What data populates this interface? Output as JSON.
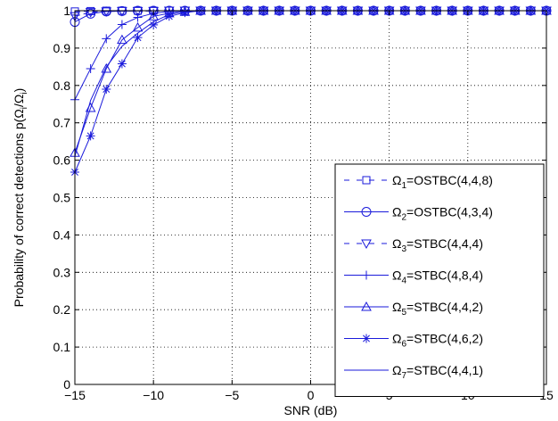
{
  "chart_data": {
    "type": "line",
    "title": "",
    "xlabel": "SNR (dB)",
    "ylabel": "Probability of correct detections p(Ωᵢ/Ωᵢ)",
    "ylabel_main": "Probability of correct detections p(Ω",
    "ylabel_sub": "i",
    "ylabel_mid": "/Ω",
    "ylabel_end": ")",
    "xlim": [
      -15,
      15
    ],
    "ylim": [
      0,
      1
    ],
    "xticks": [
      -15,
      -10,
      -5,
      0,
      5,
      10,
      15
    ],
    "yticks": [
      0,
      0.1,
      0.2,
      0.3,
      0.4,
      0.5,
      0.6,
      0.7,
      0.8,
      0.9,
      1
    ],
    "xtick_labels": [
      "−15",
      "−10",
      "−5",
      "0",
      "5",
      "10",
      "15"
    ],
    "ytick_labels": [
      "0",
      "0.1",
      "0.2",
      "0.3",
      "0.4",
      "0.5",
      "0.6",
      "0.7",
      "0.8",
      "0.9",
      "1"
    ],
    "grid": true,
    "legend_position": "bottom-right",
    "x": [
      -15,
      -14,
      -13,
      -12,
      -11,
      -10,
      -9,
      -8,
      -7,
      -6,
      -5,
      -4,
      -3,
      -2,
      -1,
      0,
      1,
      2,
      3,
      4,
      5,
      6,
      7,
      8,
      9,
      10,
      11,
      12,
      13,
      14,
      15
    ],
    "series": [
      {
        "name_prefix": "Ω",
        "name_sub": "1",
        "name_suffix": "=OSTBC(4,4,8)",
        "marker": "square",
        "dash": "dashed",
        "color": "#1a1adb",
        "values": [
          0.998,
          0.999,
          1,
          1,
          1,
          1,
          1,
          1,
          1,
          1,
          1,
          1,
          1,
          1,
          1,
          1,
          1,
          1,
          1,
          1,
          1,
          1,
          1,
          1,
          1,
          1,
          1,
          1,
          1,
          1,
          1
        ]
      },
      {
        "name_prefix": "Ω",
        "name_sub": "2",
        "name_suffix": "=OSTBC(4,3,4)",
        "marker": "circle",
        "dash": "solid",
        "color": "#1a1adb",
        "values": [
          0.97,
          0.992,
          0.998,
          0.999,
          1,
          1,
          1,
          1,
          1,
          1,
          1,
          1,
          1,
          1,
          1,
          1,
          1,
          1,
          1,
          1,
          1,
          1,
          1,
          1,
          1,
          1,
          1,
          1,
          1,
          1,
          1
        ]
      },
      {
        "name_prefix": "Ω",
        "name_sub": "3",
        "name_suffix": "=STBC(4,4,4)",
        "marker": "triangle-down",
        "dash": "dashed",
        "color": "#1a1adb",
        "values": [
          0.985,
          0.996,
          0.998,
          0.999,
          0.999,
          0.999,
          1,
          1,
          1,
          1,
          1,
          1,
          1,
          1,
          1,
          1,
          1,
          1,
          1,
          1,
          1,
          1,
          1,
          1,
          1,
          1,
          1,
          1,
          1,
          1,
          1
        ]
      },
      {
        "name_prefix": "Ω",
        "name_sub": "4",
        "name_suffix": "=STBC(4,8,4)",
        "marker": "plus",
        "dash": "solid",
        "color": "#1a1adb",
        "values": [
          0.762,
          0.845,
          0.925,
          0.963,
          0.982,
          0.993,
          0.998,
          0.999,
          1,
          1,
          1,
          1,
          1,
          1,
          1,
          1,
          1,
          1,
          1,
          1,
          1,
          1,
          1,
          1,
          1,
          1,
          1,
          1,
          1,
          1,
          1
        ]
      },
      {
        "name_prefix": "Ω",
        "name_sub": "5",
        "name_suffix": "=STBC(4,4,2)",
        "marker": "triangle-up",
        "dash": "solid",
        "color": "#1a1adb",
        "values": [
          0.62,
          0.74,
          0.845,
          0.922,
          0.955,
          0.985,
          0.993,
          0.997,
          1,
          1,
          1,
          1,
          1,
          1,
          1,
          1,
          1,
          1,
          1,
          1,
          1,
          1,
          1,
          1,
          1,
          1,
          1,
          1,
          1,
          1,
          1
        ]
      },
      {
        "name_prefix": "Ω",
        "name_sub": "6",
        "name_suffix": "=STBC(4,6,2)",
        "marker": "star",
        "dash": "solid",
        "color": "#1a1adb",
        "values": [
          0.568,
          0.665,
          0.79,
          0.858,
          0.928,
          0.962,
          0.985,
          0.995,
          1,
          1,
          1,
          1,
          1,
          1,
          1,
          1,
          1,
          1,
          1,
          1,
          1,
          1,
          1,
          1,
          1,
          1,
          1,
          1,
          1,
          1,
          1
        ]
      },
      {
        "name_prefix": "Ω",
        "name_sub": "7",
        "name_suffix": "=STBC(4,4,1)",
        "marker": "none",
        "dash": "solid",
        "color": "#1a1adb",
        "values": [
          0.61,
          0.76,
          0.85,
          0.905,
          0.94,
          0.97,
          0.99,
          0.998,
          1,
          1,
          1,
          1,
          1,
          1,
          1,
          1,
          1,
          1,
          1,
          1,
          1,
          1,
          1,
          1,
          1,
          1,
          1,
          1,
          1,
          1,
          1
        ]
      }
    ]
  }
}
